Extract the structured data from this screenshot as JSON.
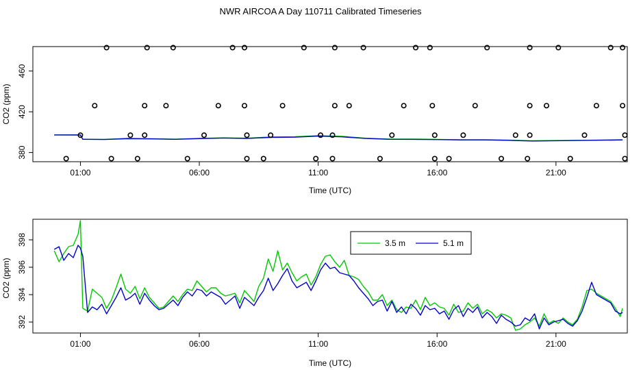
{
  "title": "NWR AIRCOA A  Day 110711  Calibrated Timeseries",
  "colors": {
    "series_3_5m": "#00c800",
    "series_5_1m": "#0000cc",
    "markers": "#000000"
  },
  "chart_data": [
    {
      "type": "scatter+line",
      "title": "",
      "xlabel": "Time (UTC)",
      "ylabel": "CO2 (ppm)",
      "xlim": [
        -1.0,
        24.0
      ],
      "ylim": [
        371,
        484
      ],
      "x_unit": "hours UTC",
      "x_ticks": [
        1,
        6,
        11,
        16,
        21
      ],
      "x_tick_labels": [
        "01:00",
        "06:00",
        "11:00",
        "16:00",
        "21:00"
      ],
      "y_ticks": [
        380,
        420,
        460
      ],
      "y_tick_labels": [
        "380",
        "420",
        "460"
      ],
      "grid": false,
      "legend": "none",
      "markers": {
        "name": "calibration points",
        "points": [
          [
            0.4,
            374
          ],
          [
            2.3,
            374
          ],
          [
            3.4,
            374
          ],
          [
            5.5,
            374
          ],
          [
            8.0,
            374
          ],
          [
            8.7,
            374
          ],
          [
            10.9,
            374
          ],
          [
            11.6,
            374
          ],
          [
            13.6,
            374
          ],
          [
            15.9,
            374
          ],
          [
            16.5,
            374
          ],
          [
            18.7,
            374
          ],
          [
            19.8,
            374
          ],
          [
            21.6,
            374
          ],
          [
            23.9,
            374
          ],
          [
            1.0,
            397
          ],
          [
            3.1,
            397
          ],
          [
            3.7,
            397
          ],
          [
            6.2,
            397
          ],
          [
            8.0,
            397
          ],
          [
            9.0,
            397
          ],
          [
            11.1,
            397
          ],
          [
            11.6,
            397
          ],
          [
            14.1,
            397
          ],
          [
            15.9,
            397
          ],
          [
            17.1,
            397
          ],
          [
            19.3,
            397
          ],
          [
            19.9,
            397
          ],
          [
            22.2,
            397
          ],
          [
            23.9,
            397
          ],
          [
            1.6,
            426
          ],
          [
            3.7,
            426
          ],
          [
            4.6,
            426
          ],
          [
            6.8,
            426
          ],
          [
            7.9,
            426
          ],
          [
            9.5,
            426
          ],
          [
            11.7,
            426
          ],
          [
            12.3,
            426
          ],
          [
            14.6,
            426
          ],
          [
            15.8,
            426
          ],
          [
            17.6,
            426
          ],
          [
            19.9,
            426
          ],
          [
            20.6,
            426
          ],
          [
            22.7,
            426
          ],
          [
            23.8,
            426
          ],
          [
            2.1,
            483
          ],
          [
            3.8,
            483
          ],
          [
            4.9,
            483
          ],
          [
            7.4,
            483
          ],
          [
            7.9,
            483
          ],
          [
            10.4,
            483
          ],
          [
            11.7,
            483
          ],
          [
            12.9,
            483
          ],
          [
            15.1,
            483
          ],
          [
            15.7,
            483
          ],
          [
            18.1,
            483
          ],
          [
            19.9,
            483
          ],
          [
            21.1,
            483
          ],
          [
            23.3,
            483
          ],
          [
            23.8,
            483
          ]
        ]
      },
      "series": [
        {
          "name": "3.5 m",
          "x": [
            -0.1,
            1.0,
            1.1,
            2.0,
            3.0,
            4.0,
            5.0,
            6.0,
            7.0,
            8.0,
            9.0,
            10.0,
            11.0,
            12.0,
            13.0,
            14.0,
            15.0,
            16.0,
            17.0,
            18.0,
            19.0,
            20.0,
            21.0,
            22.0,
            23.0,
            23.8
          ],
          "y": [
            397.3,
            397.3,
            393.0,
            392.9,
            394.0,
            393.5,
            393.1,
            393.9,
            394.4,
            394.1,
            395.3,
            395.5,
            396.6,
            395.9,
            394.1,
            393.2,
            393.2,
            392.9,
            392.5,
            392.6,
            392.2,
            391.5,
            391.8,
            392.0,
            392.3,
            392.5
          ]
        },
        {
          "name": "5.1 m",
          "x": [
            -0.1,
            1.0,
            1.1,
            2.0,
            3.0,
            4.0,
            5.0,
            6.0,
            7.0,
            8.0,
            9.0,
            10.0,
            11.0,
            12.0,
            13.0,
            14.0,
            15.0,
            16.0,
            17.0,
            18.0,
            19.0,
            20.0,
            21.0,
            22.0,
            23.0,
            23.8
          ],
          "y": [
            397.3,
            397.2,
            393.0,
            392.8,
            393.6,
            393.4,
            393.0,
            393.7,
            394.3,
            393.9,
            394.9,
            395.1,
            396.1,
            395.4,
            393.8,
            393.0,
            392.9,
            392.7,
            392.4,
            392.4,
            392.0,
            391.3,
            391.6,
            391.9,
            392.1,
            392.4
          ]
        }
      ]
    },
    {
      "type": "line",
      "title": "",
      "xlabel": "Time (UTC)",
      "ylabel": "CO2 (ppm)",
      "xlim": [
        -1.0,
        24.0
      ],
      "ylim": [
        391.2,
        399.5
      ],
      "x_unit": "hours UTC",
      "x_ticks": [
        1,
        6,
        11,
        16,
        21
      ],
      "x_tick_labels": [
        "01:00",
        "06:00",
        "11:00",
        "16:00",
        "21:00"
      ],
      "y_ticks": [
        392,
        394,
        396,
        398
      ],
      "y_tick_labels": [
        "392",
        "394",
        "396",
        "398"
      ],
      "grid": false,
      "legend": "top-center",
      "series": [
        {
          "name": "3.5 m",
          "x": [
            -0.1,
            0.1,
            0.3,
            0.5,
            0.7,
            0.9,
            1.0,
            1.1,
            1.3,
            1.5,
            1.7,
            1.9,
            2.1,
            2.3,
            2.5,
            2.7,
            2.9,
            3.1,
            3.3,
            3.5,
            3.7,
            3.9,
            4.1,
            4.3,
            4.5,
            4.7,
            4.9,
            5.1,
            5.3,
            5.5,
            5.7,
            5.9,
            6.1,
            6.3,
            6.5,
            6.7,
            6.9,
            7.1,
            7.3,
            7.5,
            7.7,
            7.9,
            8.1,
            8.3,
            8.5,
            8.7,
            8.9,
            9.1,
            9.3,
            9.5,
            9.7,
            9.9,
            10.1,
            10.3,
            10.5,
            10.7,
            10.9,
            11.1,
            11.3,
            11.5,
            11.7,
            11.9,
            12.1,
            12.3,
            12.5,
            12.7,
            12.9,
            13.1,
            13.3,
            13.5,
            13.7,
            13.9,
            14.1,
            14.3,
            14.5,
            14.7,
            14.9,
            15.1,
            15.3,
            15.5,
            15.7,
            15.9,
            16.1,
            16.3,
            16.5,
            16.7,
            16.9,
            17.1,
            17.3,
            17.5,
            17.7,
            17.9,
            18.1,
            18.3,
            18.5,
            18.7,
            18.9,
            19.1,
            19.3,
            19.5,
            19.7,
            19.9,
            20.1,
            20.3,
            20.5,
            20.7,
            20.9,
            21.1,
            21.3,
            21.5,
            21.7,
            21.9,
            22.1,
            22.3,
            22.5,
            22.7,
            22.9,
            23.1,
            23.3,
            23.5,
            23.7,
            23.8
          ],
          "y": [
            397.2,
            396.4,
            397.0,
            397.5,
            397.6,
            398.4,
            399.4,
            393.0,
            392.8,
            394.4,
            394.1,
            393.8,
            393.0,
            393.6,
            394.5,
            395.5,
            394.4,
            394.1,
            394.6,
            393.7,
            394.5,
            393.8,
            393.4,
            393.0,
            393.1,
            393.5,
            393.9,
            393.5,
            394.0,
            394.4,
            394.3,
            395.0,
            394.6,
            394.2,
            394.5,
            394.5,
            394.1,
            393.9,
            394.0,
            394.1,
            393.4,
            394.3,
            393.9,
            393.5,
            394.6,
            395.2,
            396.6,
            395.7,
            397.2,
            395.8,
            396.3,
            395.6,
            395.0,
            395.3,
            395.5,
            394.7,
            395.3,
            396.2,
            396.8,
            396.9,
            396.4,
            396.0,
            396.5,
            395.4,
            395.3,
            395.1,
            394.6,
            394.2,
            393.6,
            393.6,
            394.0,
            393.2,
            393.6,
            392.9,
            392.7,
            393.1,
            393.0,
            393.6,
            392.9,
            393.8,
            393.2,
            393.4,
            393.1,
            393.0,
            392.5,
            393.3,
            392.7,
            392.8,
            393.4,
            393.0,
            393.3,
            392.6,
            392.9,
            392.7,
            392.3,
            392.6,
            392.5,
            392.3,
            391.4,
            391.5,
            391.8,
            392.0,
            392.3,
            391.7,
            392.6,
            391.9,
            392.1,
            391.9,
            392.3,
            392.0,
            391.8,
            392.2,
            393.1,
            394.3,
            394.4,
            394.1,
            393.9,
            393.7,
            393.5,
            393.0,
            392.4,
            393.0
          ],
          "color": "#00c800"
        },
        {
          "name": "5.1 m",
          "x": [
            -0.1,
            0.1,
            0.3,
            0.5,
            0.7,
            0.9,
            1.0,
            1.1,
            1.3,
            1.5,
            1.7,
            1.9,
            2.1,
            2.3,
            2.5,
            2.7,
            2.9,
            3.1,
            3.3,
            3.5,
            3.7,
            3.9,
            4.1,
            4.3,
            4.5,
            4.7,
            4.9,
            5.1,
            5.3,
            5.5,
            5.7,
            5.9,
            6.1,
            6.3,
            6.5,
            6.7,
            6.9,
            7.1,
            7.3,
            7.5,
            7.7,
            7.9,
            8.1,
            8.3,
            8.5,
            8.7,
            8.9,
            9.1,
            9.3,
            9.5,
            9.7,
            9.9,
            10.1,
            10.3,
            10.5,
            10.7,
            10.9,
            11.1,
            11.3,
            11.5,
            11.7,
            11.9,
            12.1,
            12.3,
            12.5,
            12.7,
            12.9,
            13.1,
            13.3,
            13.5,
            13.7,
            13.9,
            14.1,
            14.3,
            14.5,
            14.7,
            14.9,
            15.1,
            15.3,
            15.5,
            15.7,
            15.9,
            16.1,
            16.3,
            16.5,
            16.7,
            16.9,
            17.1,
            17.3,
            17.5,
            17.7,
            17.9,
            18.1,
            18.3,
            18.5,
            18.7,
            18.9,
            19.1,
            19.3,
            19.5,
            19.7,
            19.9,
            20.1,
            20.3,
            20.5,
            20.7,
            20.9,
            21.1,
            21.3,
            21.5,
            21.7,
            21.9,
            22.1,
            22.3,
            22.5,
            22.7,
            22.9,
            23.1,
            23.3,
            23.5,
            23.7,
            23.8
          ],
          "y": [
            397.3,
            397.5,
            396.5,
            397.0,
            396.7,
            397.6,
            397.4,
            396.8,
            392.7,
            393.1,
            392.9,
            393.3,
            392.6,
            393.2,
            393.8,
            394.5,
            393.6,
            393.8,
            394.1,
            393.3,
            394.1,
            393.6,
            393.2,
            392.9,
            393.0,
            393.3,
            393.6,
            393.2,
            393.8,
            394.2,
            393.9,
            394.4,
            394.3,
            393.9,
            394.2,
            394.0,
            393.8,
            393.3,
            393.6,
            393.9,
            393.0,
            393.8,
            393.5,
            393.2,
            393.8,
            394.3,
            395.2,
            394.3,
            394.8,
            395.4,
            395.9,
            395.0,
            394.5,
            394.7,
            394.9,
            394.3,
            395.0,
            395.8,
            396.3,
            395.9,
            396.0,
            395.6,
            395.5,
            395.4,
            395.0,
            394.5,
            394.1,
            393.7,
            393.2,
            393.5,
            393.6,
            392.8,
            393.5,
            392.7,
            393.1,
            392.6,
            393.3,
            393.0,
            392.5,
            393.2,
            392.9,
            393.0,
            392.6,
            392.8,
            392.2,
            392.9,
            393.2,
            392.4,
            393.0,
            392.7,
            393.1,
            392.3,
            392.7,
            392.4,
            391.9,
            392.5,
            392.2,
            392.0,
            391.7,
            391.8,
            392.3,
            392.1,
            392.6,
            391.5,
            392.3,
            391.8,
            392.0,
            392.1,
            392.2,
            391.9,
            391.7,
            392.1,
            392.8,
            393.8,
            394.9,
            394.0,
            393.8,
            393.6,
            393.4,
            392.8,
            392.6,
            392.7
          ],
          "color": "#0000cc"
        }
      ]
    }
  ]
}
